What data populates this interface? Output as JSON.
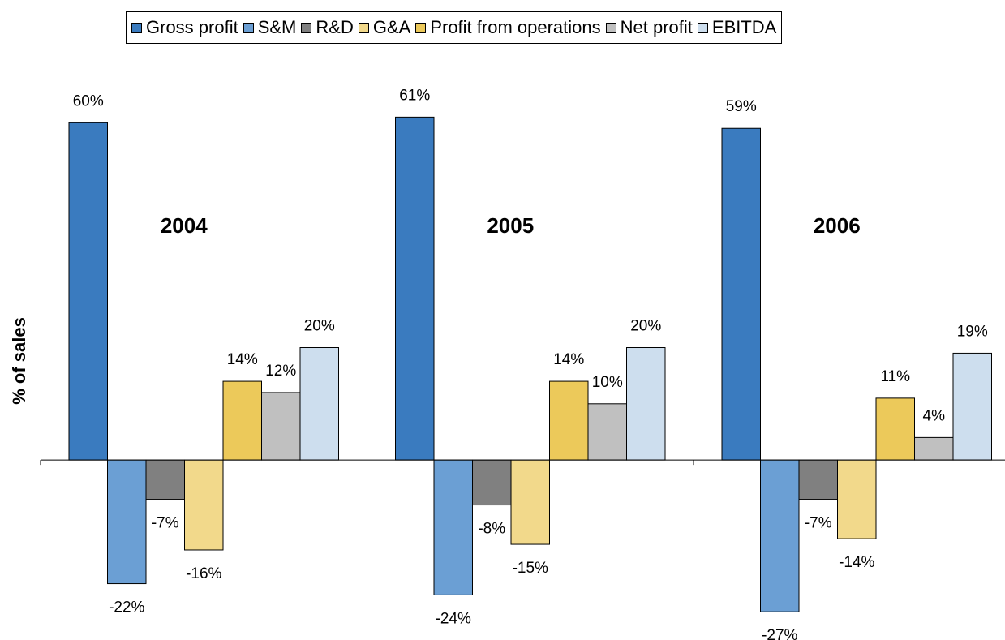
{
  "chart_data": {
    "type": "bar",
    "y_label": "% of sales",
    "categories": [
      "2004",
      "2005",
      "2006"
    ],
    "series": [
      {
        "name": "Gross profit",
        "color": "#3a7bbf",
        "values": [
          60,
          61,
          59
        ],
        "value_labels": [
          "60%",
          "61%",
          "59%"
        ]
      },
      {
        "name": "S&M",
        "color": "#6b9fd4",
        "values": [
          -22,
          -24,
          -27
        ],
        "value_labels": [
          "-22%",
          "-24%",
          "-27%"
        ]
      },
      {
        "name": "R&D",
        "color": "#808080",
        "values": [
          -7,
          -8,
          -7
        ],
        "value_labels": [
          "-7%",
          "-8%",
          "-7%"
        ]
      },
      {
        "name": "G&A",
        "color": "#f2d98b",
        "values": [
          -16,
          -15,
          -14
        ],
        "value_labels": [
          "-16%",
          "-15%",
          "-14%"
        ]
      },
      {
        "name": "Profit from operations",
        "color": "#ecc95a",
        "values": [
          14,
          14,
          11
        ],
        "value_labels": [
          "14%",
          "14%",
          "11%"
        ]
      },
      {
        "name": "Net profit",
        "color": "#c0c0c0",
        "values": [
          12,
          10,
          4
        ],
        "value_labels": [
          "12%",
          "10%",
          "4%"
        ]
      },
      {
        "name": "EBITDA",
        "color": "#cddeee",
        "values": [
          20,
          20,
          19
        ],
        "value_labels": [
          "20%",
          "20%",
          "19%"
        ]
      }
    ],
    "ylim": [
      -30,
      70
    ],
    "legend": "top"
  }
}
